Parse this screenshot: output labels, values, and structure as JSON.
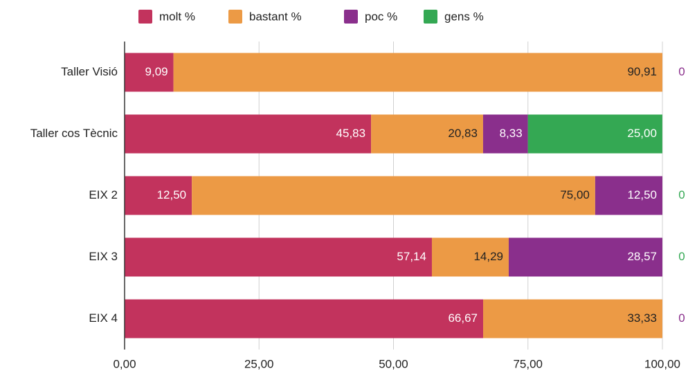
{
  "chart_data": {
    "type": "bar",
    "orientation": "horizontal",
    "stacked": true,
    "categories": [
      "Taller Visió",
      "Taller cos Tècnic",
      "EIX 2",
      "EIX 3",
      "EIX 4"
    ],
    "series": [
      {
        "name": "molt %",
        "color": "#c2335d",
        "label_color": "#ffffff",
        "values": [
          9.09,
          45.83,
          12.5,
          57.14,
          66.67
        ],
        "value_labels": [
          "9,09",
          "45,83",
          "12,50",
          "57,14",
          "66,67"
        ]
      },
      {
        "name": "bastant %",
        "color": "#ec9a45",
        "label_color": "#222222",
        "values": [
          90.91,
          20.83,
          75,
          14.29,
          33.33
        ],
        "value_labels": [
          "90,91",
          "20,83",
          "75,00",
          "14,29",
          "33,33"
        ]
      },
      {
        "name": "poc %",
        "color": "#8a2f8c",
        "label_color": "#ffffff",
        "values": [
          0,
          8.33,
          12.5,
          28.57,
          0
        ],
        "value_labels": [
          "0",
          "8,33",
          "12,50",
          "28,57",
          "0"
        ]
      },
      {
        "name": "gens %",
        "color": "#34a853",
        "label_color": "#ffffff",
        "values": [
          null,
          25,
          0,
          0,
          null
        ],
        "value_labels": [
          null,
          "25,00",
          "0",
          "0",
          null
        ]
      }
    ],
    "xlim": [
      0,
      100
    ],
    "xticks": [
      {
        "value": 0,
        "label": "0,00"
      },
      {
        "value": 25,
        "label": "25,00"
      },
      {
        "value": 50,
        "label": "50,00"
      },
      {
        "value": 75,
        "label": "75,00"
      },
      {
        "value": 100,
        "label": "100,00"
      }
    ],
    "grid": true,
    "legend": "top"
  }
}
